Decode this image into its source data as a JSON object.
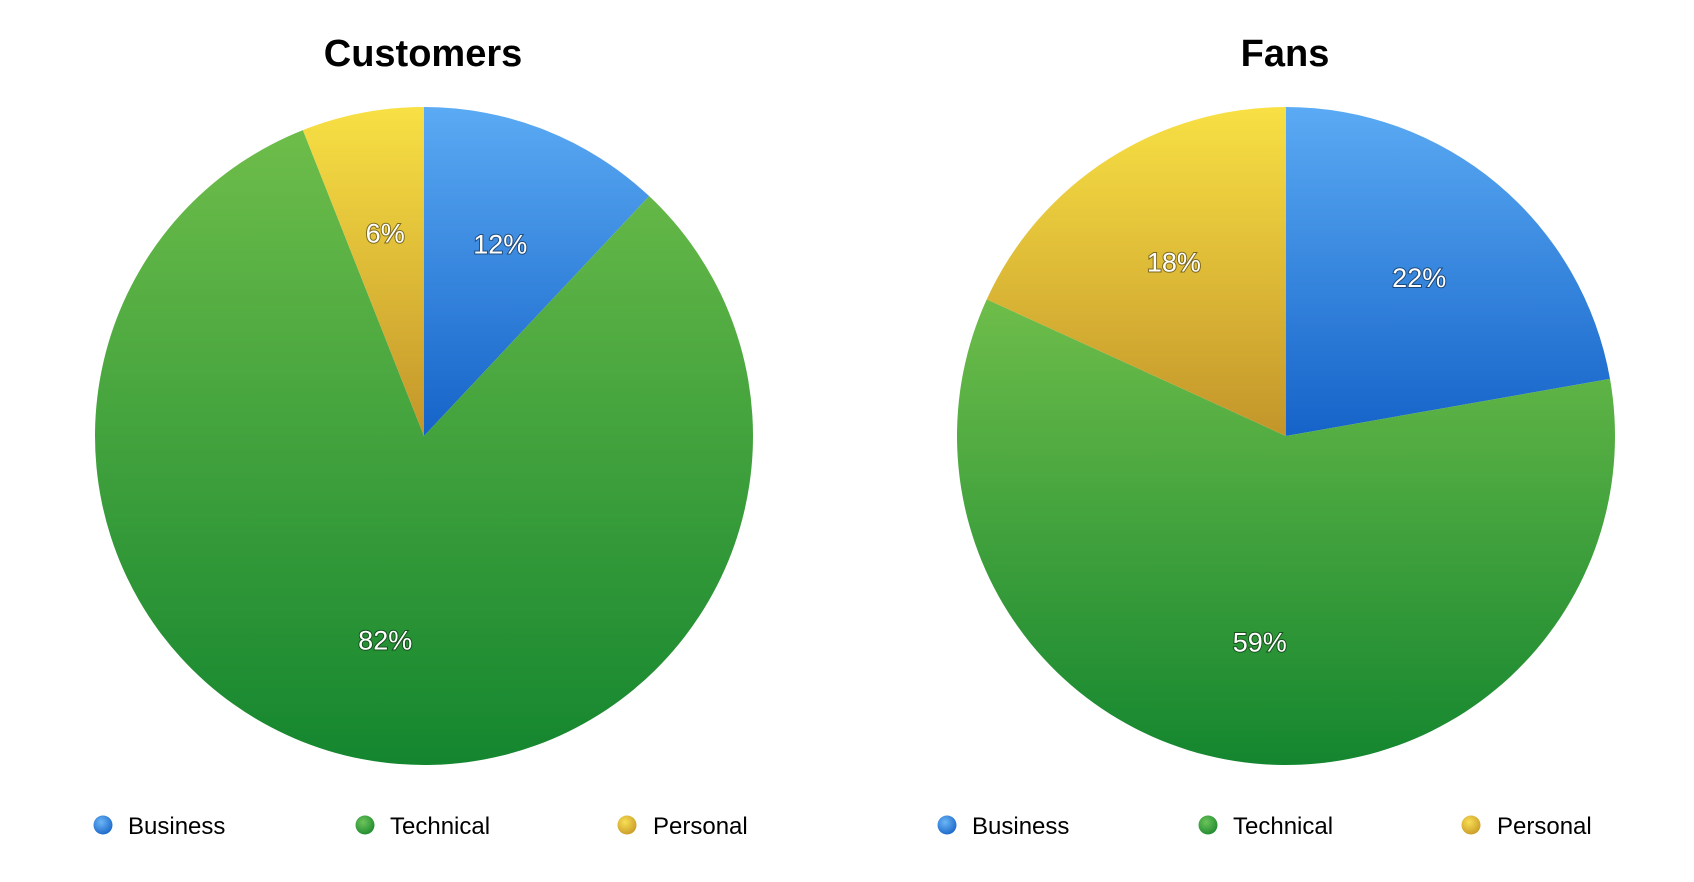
{
  "chart_data": [
    {
      "type": "pie",
      "title": "Customers",
      "categories": [
        "Business",
        "Technical",
        "Personal"
      ],
      "values": [
        12,
        82,
        6
      ],
      "labels": [
        "12%",
        "82%",
        "6%"
      ],
      "colors": [
        "#2f86e4",
        "#2fa03c",
        "#e3be2c"
      ],
      "legend": "bottom"
    },
    {
      "type": "pie",
      "title": "Fans",
      "categories": [
        "Business",
        "Technical",
        "Personal"
      ],
      "values": [
        22,
        59,
        18
      ],
      "labels": [
        "22%",
        "59%",
        "18%"
      ],
      "colors": [
        "#2f86e4",
        "#2fa03c",
        "#e3be2c"
      ],
      "legend": "bottom"
    }
  ]
}
